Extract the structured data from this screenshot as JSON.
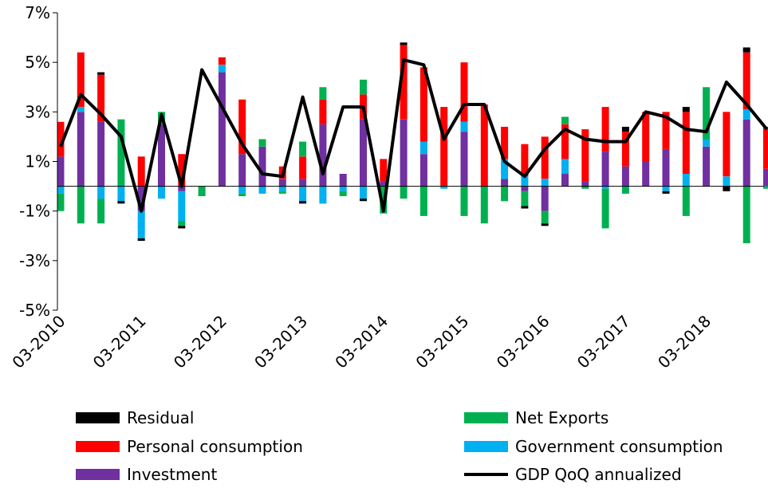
{
  "chart_data": {
    "type": "bar",
    "stacked": true,
    "title": "",
    "xlabel": "",
    "ylabel": "",
    "ylim": [
      -5,
      7
    ],
    "yticks": [
      -5,
      -3,
      -1,
      1,
      3,
      5,
      7
    ],
    "ytick_labels": [
      "-5%",
      "-3%",
      "-1%",
      "1%",
      "3%",
      "5%",
      "7%"
    ],
    "xtick_labels": [
      {
        "index": 0,
        "label": "03-2010"
      },
      {
        "index": 4,
        "label": "03-2011"
      },
      {
        "index": 8,
        "label": "03-2012"
      },
      {
        "index": 12,
        "label": "03-2013"
      },
      {
        "index": 16,
        "label": "03-2014"
      },
      {
        "index": 20,
        "label": "03-2015"
      },
      {
        "index": 24,
        "label": "03-2016"
      },
      {
        "index": 28,
        "label": "03-2017"
      },
      {
        "index": 32,
        "label": "03-2018"
      }
    ],
    "categories": [
      "Q1 2010",
      "Q2 2010",
      "Q3 2010",
      "Q4 2010",
      "Q1 2011",
      "Q2 2011",
      "Q3 2011",
      "Q4 2011",
      "Q1 2012",
      "Q2 2012",
      "Q3 2012",
      "Q4 2012",
      "Q1 2013",
      "Q2 2013",
      "Q3 2013",
      "Q4 2013",
      "Q1 2014",
      "Q2 2014",
      "Q3 2014",
      "Q4 2014",
      "Q1 2015",
      "Q2 2015",
      "Q3 2015",
      "Q4 2015",
      "Q1 2016",
      "Q2 2016",
      "Q3 2016",
      "Q4 2016",
      "Q1 2017",
      "Q2 2017",
      "Q3 2017",
      "Q4 2017",
      "Q1 2018",
      "Q2 2018",
      "Q3 2018",
      "Q4 2018"
    ],
    "grid": false,
    "legend_position": "bottom",
    "series": [
      {
        "name": "Investment",
        "color": "#7030A0",
        "values": [
          1.2,
          3.0,
          2.6,
          0.0,
          -1.0,
          2.5,
          -0.2,
          0.0,
          4.6,
          1.3,
          1.6,
          0.3,
          0.3,
          2.5,
          0.5,
          2.7,
          0.2,
          2.7,
          1.3,
          0.0,
          2.2,
          0.0,
          0.3,
          -0.2,
          -1.0,
          0.5,
          0.2,
          1.4,
          0.8,
          1.0,
          1.5,
          0.0,
          1.6,
          0.0,
          2.7,
          0.7
        ]
      },
      {
        "name": "Government consumption",
        "color": "#00B0F0",
        "values": [
          -0.3,
          0.2,
          -0.5,
          -0.6,
          -1.1,
          -0.5,
          -1.2,
          0.0,
          0.3,
          -0.3,
          -0.3,
          -0.2,
          -0.6,
          -0.7,
          -0.2,
          -0.5,
          0.0,
          0.0,
          0.5,
          -0.1,
          0.4,
          0.0,
          0.8,
          0.4,
          0.3,
          0.6,
          0.0,
          -0.1,
          0.0,
          0.0,
          -0.2,
          0.5,
          0.3,
          0.4,
          0.4,
          0.0
        ]
      },
      {
        "name": "Personal consumption",
        "color": "#FF0000",
        "values": [
          1.4,
          2.2,
          1.9,
          0.0,
          1.2,
          0.0,
          1.3,
          0.0,
          0.3,
          2.2,
          0.0,
          0.5,
          0.9,
          1.0,
          0.0,
          1.0,
          0.9,
          3.0,
          3.0,
          3.2,
          2.4,
          3.3,
          1.3,
          1.3,
          1.7,
          1.4,
          2.1,
          1.8,
          1.4,
          2.0,
          1.5,
          2.5,
          0.0,
          2.6,
          2.3,
          1.7
        ]
      },
      {
        "name": "Net Exports",
        "color": "#00B050",
        "values": [
          -0.7,
          -1.5,
          -1.0,
          2.7,
          0.0,
          0.5,
          -0.2,
          -0.4,
          0.0,
          -0.1,
          0.3,
          -0.1,
          0.6,
          0.5,
          -0.2,
          0.6,
          -1.1,
          -0.5,
          -1.2,
          0.0,
          -1.2,
          -1.5,
          -0.6,
          -0.6,
          -0.5,
          0.3,
          -0.1,
          -1.6,
          -0.3,
          0.0,
          0.0,
          -1.2,
          2.1,
          0.0,
          -2.3,
          -0.1
        ]
      },
      {
        "name": "Residual",
        "color": "#000000",
        "values": [
          0.0,
          0.0,
          0.1,
          -0.1,
          -0.1,
          0.0,
          -0.1,
          0.0,
          0.0,
          0.0,
          0.0,
          0.0,
          -0.1,
          0.0,
          0.0,
          -0.1,
          0.0,
          0.1,
          0.0,
          0.0,
          0.0,
          0.0,
          0.0,
          -0.1,
          -0.1,
          0.0,
          0.0,
          0.0,
          0.2,
          0.0,
          -0.1,
          0.2,
          0.0,
          -0.2,
          0.2,
          0.0
        ]
      },
      {
        "name": "GDP QoQ annualized",
        "type": "line",
        "color": "#000000",
        "values": [
          1.6,
          3.7,
          2.9,
          2.0,
          -1.0,
          2.9,
          0.0,
          4.7,
          3.2,
          1.7,
          0.5,
          0.4,
          3.6,
          0.5,
          3.2,
          3.2,
          -1.0,
          5.1,
          4.9,
          1.9,
          3.3,
          3.3,
          1.0,
          0.4,
          1.5,
          2.3,
          1.9,
          1.8,
          1.8,
          3.0,
          2.8,
          2.3,
          2.2,
          4.2,
          3.3,
          2.3
        ]
      }
    ],
    "legend": [
      {
        "name": "Residual",
        "color": "#000000",
        "kind": "box",
        "col": 0,
        "row": 0
      },
      {
        "name": "Net Exports",
        "color": "#00B050",
        "kind": "box",
        "col": 1,
        "row": 0
      },
      {
        "name": "Personal consumption",
        "color": "#FF0000",
        "kind": "box",
        "col": 0,
        "row": 1
      },
      {
        "name": "Government consumption",
        "color": "#00B0F0",
        "kind": "box",
        "col": 1,
        "row": 1
      },
      {
        "name": "Investment",
        "color": "#7030A0",
        "kind": "box",
        "col": 0,
        "row": 2
      },
      {
        "name": "GDP QoQ annualized",
        "color": "#000000",
        "kind": "line",
        "col": 1,
        "row": 2
      }
    ]
  }
}
